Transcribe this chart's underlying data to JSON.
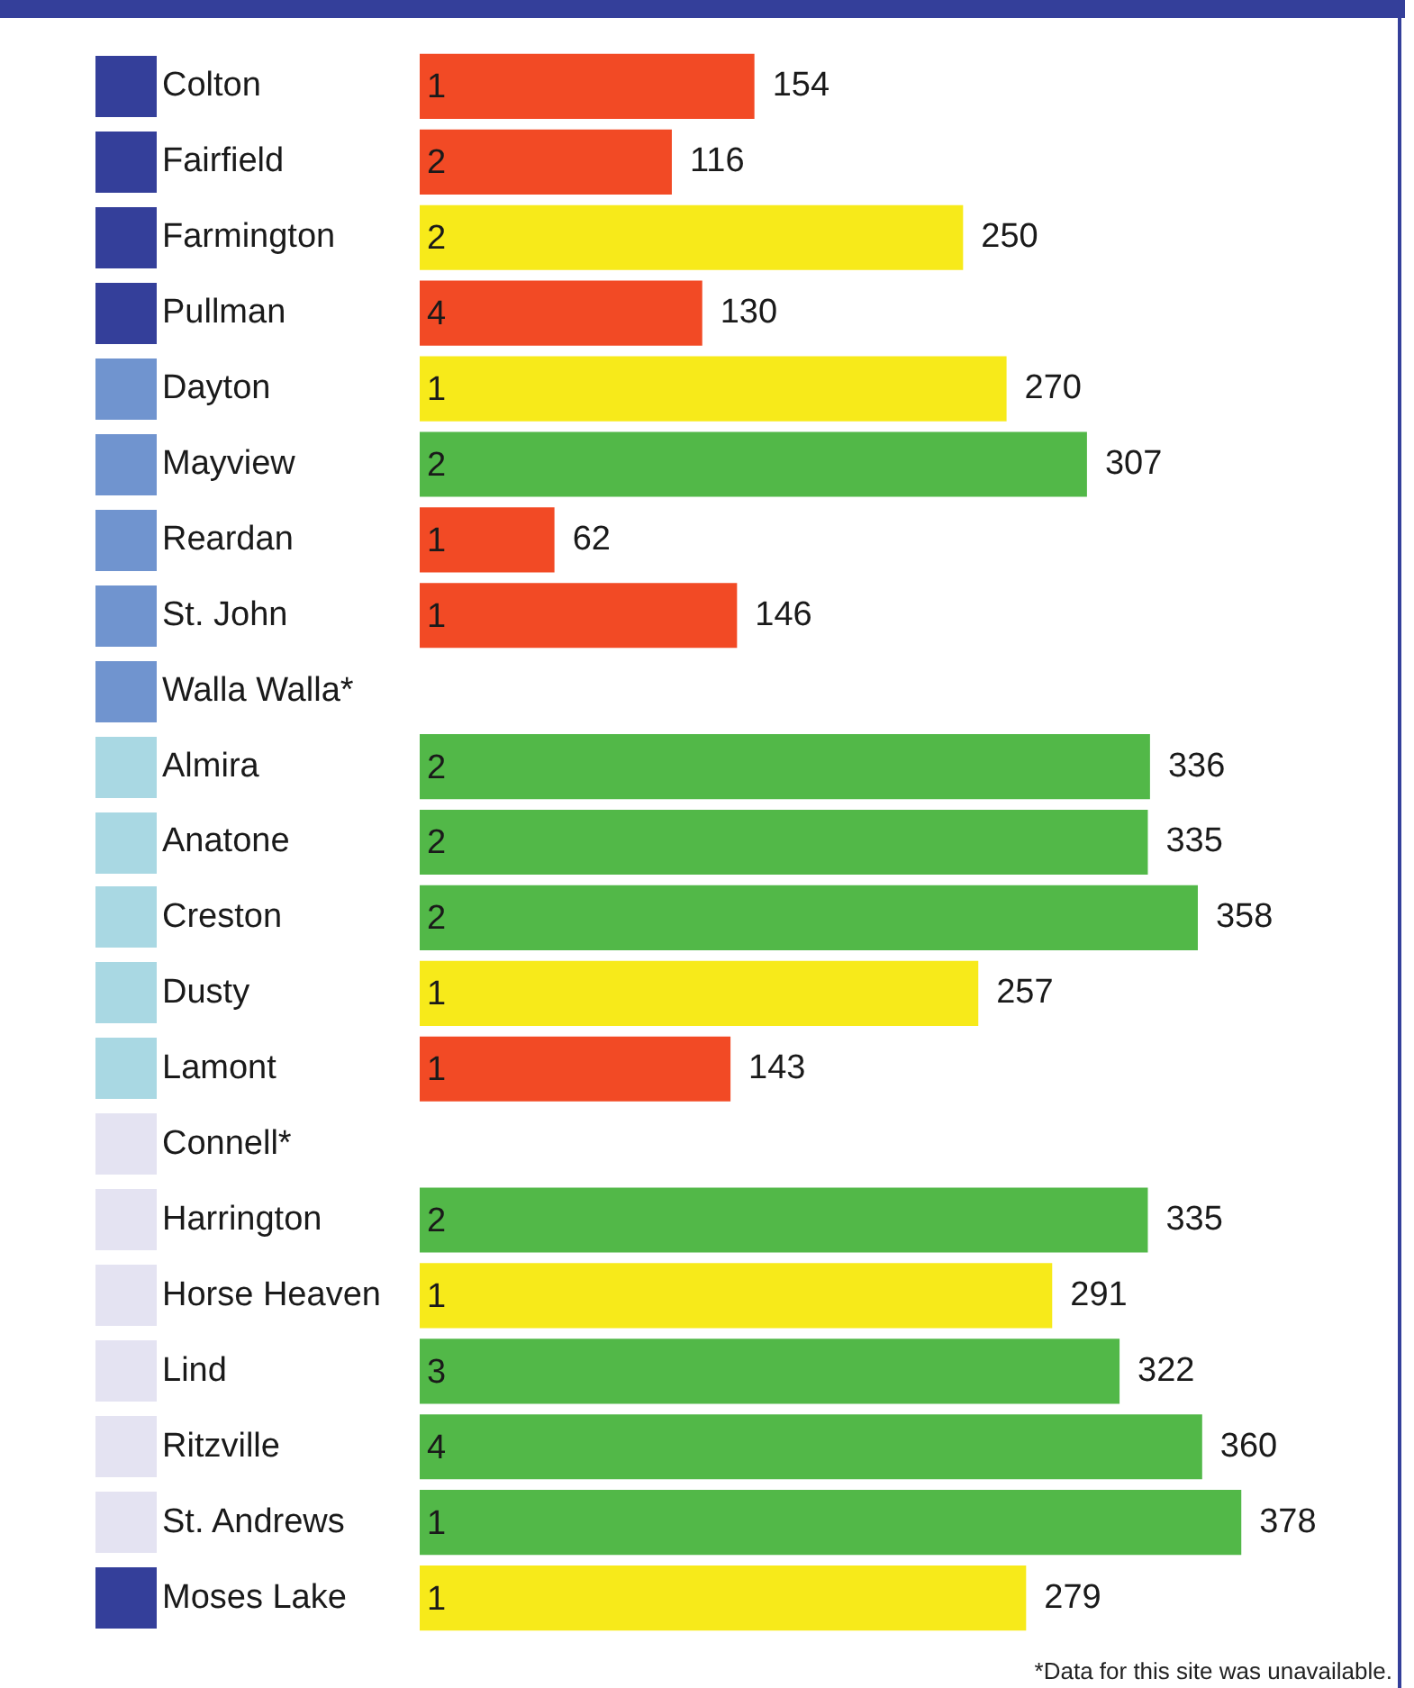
{
  "chart_data": {
    "type": "bar",
    "orientation": "horizontal",
    "data_labels": true,
    "tick_labels": "y",
    "grid": false,
    "legend": false,
    "xlim": [
      0,
      450
    ],
    "categories": [
      "Colton",
      "Fairfield",
      "Farmington",
      "Pullman",
      "Dayton",
      "Mayview",
      "Reardan",
      "St. John",
      "Walla Walla*",
      "Almira",
      "Anatone",
      "Creston",
      "Dusty",
      "Lamont",
      "Connell*",
      "Harrington",
      "Horse Heaven",
      "Lind",
      "Ritzville",
      "St. Andrews",
      "Moses Lake"
    ],
    "values": [
      154,
      116,
      250,
      130,
      270,
      307,
      62,
      146,
      null,
      336,
      335,
      358,
      257,
      143,
      null,
      335,
      291,
      322,
      360,
      378,
      279
    ],
    "colors": [
      "#f24a25",
      "#f24a25",
      "#f7ea1a",
      "#f24a25",
      "#f7ea1a",
      "#52b848",
      "#f24a25",
      "#f24a25",
      "#52b848",
      "#52b848",
      "#52b848",
      "#52b848",
      "#f7ea1a",
      "#f24a25",
      "#52b848",
      "#52b848",
      "#f7ea1a",
      "#52b848",
      "#52b848",
      "#52b848",
      "#f7ea1a"
    ],
    "annotations": [
      {
        "text": "1",
        "y": "Colton"
      },
      {
        "text": "2",
        "y": "Fairfield"
      },
      {
        "text": "2",
        "y": "Farmington"
      },
      {
        "text": "4",
        "y": "Pullman"
      },
      {
        "text": "1",
        "y": "Dayton"
      },
      {
        "text": "2",
        "y": "Mayview"
      },
      {
        "text": "1",
        "y": "Reardan"
      },
      {
        "text": "1",
        "y": "St. John"
      },
      {
        "text": "2",
        "y": "Almira"
      },
      {
        "text": "2",
        "y": "Anatone"
      },
      {
        "text": "2",
        "y": "Creston"
      },
      {
        "text": "1",
        "y": "Dusty"
      },
      {
        "text": "1",
        "y": "Lamont"
      },
      {
        "text": "2",
        "y": "Harrington"
      },
      {
        "text": "1",
        "y": "Horse Heaven"
      },
      {
        "text": "3",
        "y": "Lind"
      },
      {
        "text": "4",
        "y": "Ritzville"
      },
      {
        "text": "1",
        "y": "St. Andrews"
      },
      {
        "text": "1",
        "y": "Moses Lake"
      },
      "*Data for this site was unavailable."
    ]
  }
}
